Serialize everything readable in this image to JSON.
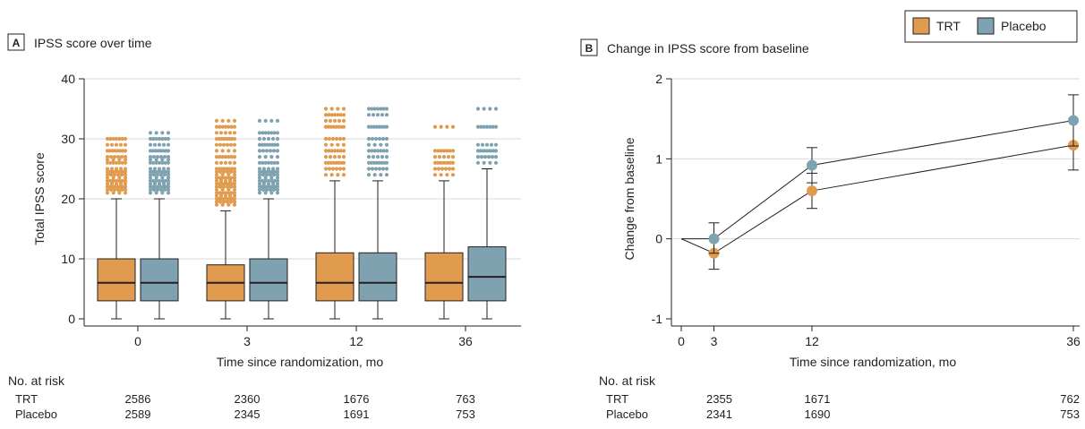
{
  "colors": {
    "trt": "#e09b4f",
    "placebo": "#7fa2b0",
    "grid": "#d9d9d9",
    "ink": "#231f20"
  },
  "legend": {
    "items": [
      {
        "label": "TRT",
        "color": "#e09b4f"
      },
      {
        "label": "Placebo",
        "color": "#7fa2b0"
      }
    ]
  },
  "chart_data": [
    {
      "type": "box",
      "panel_letter": "A",
      "title": "IPSS score over time",
      "xlabel": "Time since randomization, mo",
      "ylabel": "Total IPSS score",
      "ylim": [
        0,
        40
      ],
      "yticks": [
        0,
        10,
        20,
        30,
        40
      ],
      "grid": true,
      "categories": [
        "0",
        "3",
        "12",
        "36"
      ],
      "series": [
        {
          "name": "TRT",
          "boxes": [
            {
              "min": 0,
              "q1": 3,
              "median": 6,
              "q3": 10,
              "max": 20,
              "outliers": [
                21,
                21.5,
                22,
                22.5,
                23,
                23.5,
                24,
                24.5,
                25,
                26,
                26.5,
                27,
                28,
                29,
                30
              ]
            },
            {
              "min": 0,
              "q1": 3,
              "median": 6,
              "q3": 9,
              "max": 18,
              "outliers": [
                19,
                19.5,
                20,
                20.5,
                21,
                21.5,
                22,
                22.5,
                23,
                23.5,
                24,
                24.5,
                25,
                26,
                27,
                28,
                29,
                30,
                31,
                32,
                33
              ]
            },
            {
              "min": 0,
              "q1": 3,
              "median": 6,
              "q3": 11,
              "max": 23,
              "outliers": [
                24,
                25,
                26,
                27,
                28,
                29,
                30,
                32,
                33,
                34,
                35
              ]
            },
            {
              "min": 0,
              "q1": 3,
              "median": 6,
              "q3": 11,
              "max": 23,
              "outliers": [
                24,
                25,
                26,
                27,
                28,
                32
              ]
            }
          ]
        },
        {
          "name": "Placebo",
          "boxes": [
            {
              "min": 0,
              "q1": 3,
              "median": 6,
              "q3": 10,
              "max": 20,
              "outliers": [
                21,
                21.5,
                22,
                22.5,
                23,
                23.5,
                24,
                24.5,
                25,
                26,
                26.5,
                27,
                28,
                29,
                30,
                31
              ]
            },
            {
              "min": 0,
              "q1": 3,
              "median": 6,
              "q3": 10,
              "max": 20,
              "outliers": [
                21,
                21.5,
                22,
                22.5,
                23,
                23.5,
                24,
                24.5,
                25,
                26,
                27,
                28,
                29,
                30,
                31,
                33
              ]
            },
            {
              "min": 0,
              "q1": 3,
              "median": 6,
              "q3": 11,
              "max": 23,
              "outliers": [
                24,
                25,
                26,
                27,
                28,
                29,
                30,
                32,
                34,
                35
              ]
            },
            {
              "min": 0,
              "q1": 3,
              "median": 7,
              "q3": 12,
              "max": 25,
              "outliers": [
                26,
                27,
                28,
                29,
                32,
                35
              ]
            }
          ]
        }
      ],
      "at_risk": {
        "heading": "No. at risk",
        "rows": [
          {
            "label": "TRT",
            "values": [
              "2586",
              "2360",
              "1676",
              "763"
            ]
          },
          {
            "label": "Placebo",
            "values": [
              "2589",
              "2345",
              "1691",
              "753"
            ]
          }
        ]
      }
    },
    {
      "type": "line",
      "panel_letter": "B",
      "title": "Change in IPSS score from baseline",
      "xlabel": "Time since randomization, mo",
      "ylabel": "Change from baseline",
      "ylim": [
        -1,
        2
      ],
      "yticks": [
        -1,
        0,
        1,
        2
      ],
      "xlim": [
        0,
        36
      ],
      "xticks": [
        0,
        3,
        12,
        36
      ],
      "grid": true,
      "series": [
        {
          "name": "TRT",
          "points": [
            {
              "x": 3,
              "y": -0.18,
              "lo": -0.38,
              "hi": 0.0
            },
            {
              "x": 12,
              "y": 0.6,
              "lo": 0.38,
              "hi": 0.82
            },
            {
              "x": 36,
              "y": 1.17,
              "lo": 0.86,
              "hi": 1.48
            }
          ]
        },
        {
          "name": "Placebo",
          "points": [
            {
              "x": 3,
              "y": 0.0,
              "lo": -0.18,
              "hi": 0.2
            },
            {
              "x": 12,
              "y": 0.92,
              "lo": 0.7,
              "hi": 1.14
            },
            {
              "x": 36,
              "y": 1.48,
              "lo": 1.16,
              "hi": 1.8
            }
          ]
        }
      ],
      "at_risk": {
        "heading": "No. at risk",
        "rows": [
          {
            "label": "TRT",
            "values": [
              "2355",
              "1671",
              "762"
            ]
          },
          {
            "label": "Placebo",
            "values": [
              "2341",
              "1690",
              "753"
            ]
          }
        ]
      }
    }
  ]
}
